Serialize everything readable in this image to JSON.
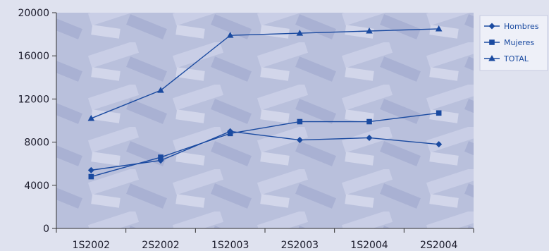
{
  "colors": {
    "background": "#dfe2ef",
    "plot_background": "#b5bcd9",
    "series_line": "#1a4aa0",
    "legend_background": "#eef0f8",
    "axis": "#333333",
    "tick_text": "#1c1c2c"
  },
  "chart_data": {
    "type": "line",
    "title": "",
    "xlabel": "",
    "ylabel": "",
    "categories": [
      "1S2002",
      "2S2002",
      "1S2003",
      "2S2003",
      "1S2004",
      "2S2004"
    ],
    "ylim": [
      0,
      20000
    ],
    "yticks": [
      "0",
      "4000",
      "8000",
      "12000",
      "16000",
      "20000"
    ],
    "yticks_values": [
      0,
      4000,
      8000,
      12000,
      16000,
      20000
    ],
    "grid": false,
    "legend_position": "right",
    "series": [
      {
        "name": "Hombres",
        "marker": "diamond",
        "values": [
          5400,
          6300,
          9000,
          8200,
          8400,
          7800
        ]
      },
      {
        "name": "Mujeres",
        "marker": "square",
        "values": [
          4800,
          6600,
          8800,
          9900,
          9900,
          10700
        ]
      },
      {
        "name": "TOTAL",
        "marker": "triangle",
        "values": [
          10200,
          12800,
          17900,
          18100,
          18300,
          18500
        ]
      }
    ]
  }
}
